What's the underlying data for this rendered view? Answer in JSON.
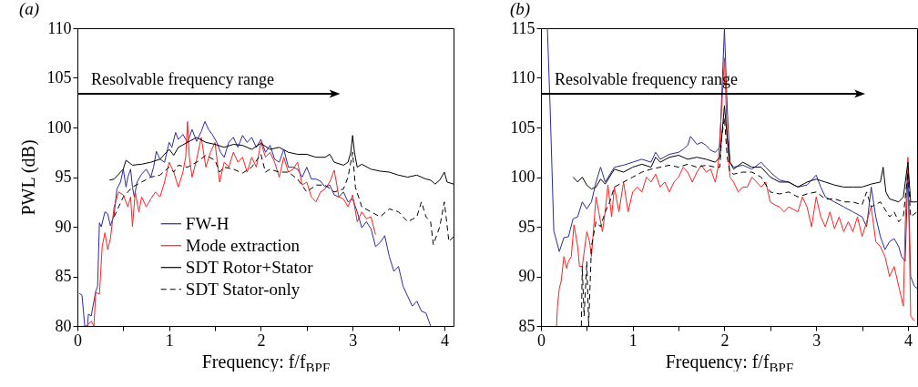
{
  "chart_data": [
    {
      "type": "line",
      "title": "(a)",
      "xlabel": "Frequency: f/f$_{BPF}$",
      "ylabel": "PWL (dB)",
      "xlim": [
        0,
        4.1
      ],
      "xticks": [
        0,
        {
          "value": 0.5,
          "label": null
        },
        1,
        {
          "value": 1.5,
          "label": null
        },
        2,
        {
          "value": 2.5,
          "label": null
        },
        3,
        {
          "value": 3.5,
          "label": null
        },
        4
      ],
      "ylim": [
        80,
        110
      ],
      "yticks": [
        80,
        85,
        90,
        95,
        100,
        105,
        110
      ],
      "legend": "bottom",
      "marker": "none",
      "annotations": [
        {
          "text": "Resolvable frequency range",
          "x": 2.82,
          "y": 103.4
        }
      ],
      "series": [
        {
          "name": "FW-H",
          "color": "#2b2b9e",
          "line_style": "solid",
          "x": [
            0.02,
            0.05,
            0.08,
            0.11,
            0.12,
            0.15,
            0.2,
            0.22,
            0.24,
            0.26,
            0.3,
            0.33,
            0.36,
            0.4,
            0.43,
            0.47,
            0.5,
            0.53,
            0.55,
            0.58,
            0.6,
            0.62,
            0.65,
            0.7,
            0.75,
            0.8,
            0.83,
            0.86,
            0.9,
            0.95,
            1.0,
            1.03,
            1.07,
            1.1,
            1.15,
            1.2,
            1.25,
            1.3,
            1.35,
            1.39,
            1.43,
            1.47,
            1.52,
            1.56,
            1.6,
            1.65,
            1.7,
            1.75,
            1.8,
            1.85,
            1.9,
            1.95,
            2.0,
            2.05,
            2.1,
            2.15,
            2.2,
            2.25,
            2.3,
            2.35,
            2.4,
            2.45,
            2.5,
            2.55,
            2.6,
            2.65,
            2.7,
            2.75,
            2.8,
            2.85,
            2.9,
            2.95,
            3.0,
            3.05,
            3.1,
            3.15,
            3.2,
            3.25,
            3.3,
            3.35,
            3.4,
            3.45,
            3.5,
            3.55,
            3.6,
            3.65,
            3.7,
            3.75,
            3.8,
            3.85
          ],
          "values": [
            83.3,
            83.1,
            80.0,
            80.0,
            81.2,
            81.0,
            83.5,
            84.0,
            90.4,
            90.0,
            91.5,
            91.3,
            90.1,
            91.2,
            93.8,
            94.5,
            95.8,
            94.0,
            95.0,
            95.8,
            94.0,
            93.0,
            94.5,
            95.3,
            95.8,
            95.0,
            96.0,
            97.6,
            96.8,
            96.5,
            98.5,
            98.0,
            99.5,
            98.8,
            99.3,
            98.5,
            99.8,
            98.6,
            99.6,
            100.6,
            99.8,
            99.3,
            98.5,
            97.5,
            97.0,
            98.5,
            99.0,
            98.0,
            99.2,
            98.5,
            99.0,
            98.0,
            98.8,
            97.5,
            98.2,
            96.8,
            96.5,
            97.8,
            96.0,
            96.0,
            95.8,
            95.0,
            96.0,
            94.8,
            94.8,
            94.6,
            94.0,
            94.2,
            93.2,
            93.0,
            93.5,
            92.5,
            92.8,
            91.5,
            89.9,
            90.5,
            89.8,
            88.0,
            88.4,
            89.1,
            87.0,
            85.5,
            86.0,
            84.0,
            83.0,
            82.0,
            82.5,
            81.5,
            81.3,
            80.0
          ]
        },
        {
          "name": "Mode extraction",
          "color": "#ff2020",
          "line_style": "solid",
          "x": [
            0.1,
            0.15,
            0.18,
            0.2,
            0.24,
            0.27,
            0.3,
            0.33,
            0.36,
            0.4,
            0.45,
            0.5,
            0.55,
            0.58,
            0.6,
            0.63,
            0.67,
            0.7,
            0.75,
            0.8,
            0.85,
            0.9,
            0.95,
            1.0,
            1.05,
            1.1,
            1.15,
            1.18,
            1.2,
            1.22,
            1.25,
            1.3,
            1.35,
            1.4,
            1.45,
            1.5,
            1.55,
            1.6,
            1.65,
            1.7,
            1.75,
            1.8,
            1.85,
            1.9,
            1.95,
            2.0,
            2.05,
            2.1,
            2.15,
            2.2,
            2.25,
            2.3,
            2.35,
            2.4,
            2.45,
            2.5,
            2.55,
            2.6,
            2.65,
            2.7,
            2.75,
            2.8,
            2.85,
            2.9,
            2.95,
            3.0,
            3.05,
            3.1,
            3.15,
            3.2,
            3.25
          ],
          "values": [
            80.0,
            80.5,
            80.0,
            83.4,
            83.2,
            88.0,
            89.4,
            87.7,
            88.8,
            92.0,
            93.5,
            93.2,
            92.0,
            93.0,
            90.0,
            93.5,
            91.5,
            93.0,
            92.0,
            92.8,
            93.5,
            93.0,
            94.5,
            96.5,
            95.5,
            94.0,
            95.5,
            97.0,
            100.6,
            97.0,
            95.0,
            96.8,
            99.0,
            96.0,
            97.5,
            98.5,
            94.5,
            96.5,
            96.0,
            97.5,
            96.5,
            97.0,
            95.5,
            97.0,
            96.0,
            98.5,
            97.0,
            97.5,
            96.5,
            95.0,
            97.0,
            95.5,
            95.8,
            96.5,
            94.2,
            94.5,
            93.0,
            92.5,
            93.5,
            93.8,
            94.5,
            95.7,
            93.0,
            92.8,
            92.0,
            93.2,
            90.5,
            91.5,
            90.8,
            91.0,
            89.2
          ]
        },
        {
          "name": "SDT Rotor+Stator",
          "color": "#000000",
          "line_style": "solid",
          "x": [
            0.35,
            0.4,
            0.5,
            0.53,
            0.6,
            0.7,
            0.8,
            0.9,
            1.0,
            1.05,
            1.1,
            1.2,
            1.3,
            1.4,
            1.5,
            1.6,
            1.7,
            1.8,
            1.9,
            2.0,
            2.1,
            2.2,
            2.3,
            2.4,
            2.5,
            2.6,
            2.7,
            2.75,
            2.8,
            2.9,
            2.95,
            2.98,
            3.0,
            3.02,
            3.05,
            3.1,
            3.2,
            3.3,
            3.4,
            3.5,
            3.6,
            3.7,
            3.8,
            3.85,
            3.9,
            3.95,
            4.0,
            4.03,
            4.1
          ],
          "values": [
            94.7,
            94.8,
            95.8,
            96.7,
            96.2,
            96.3,
            96.5,
            96.8,
            97.8,
            97.2,
            98.0,
            98.5,
            99.0,
            98.5,
            98.3,
            98.0,
            98.3,
            98.2,
            97.8,
            98.4,
            97.8,
            98.0,
            97.5,
            97.3,
            97.3,
            97.0,
            97.0,
            97.3,
            96.5,
            96.2,
            96.5,
            97.5,
            99.2,
            97.5,
            96.0,
            96.3,
            95.8,
            95.6,
            95.5,
            95.2,
            95.0,
            95.2,
            94.8,
            94.7,
            94.3,
            94.7,
            95.5,
            94.5,
            94.3
          ]
        },
        {
          "name": "SDT Stator-only",
          "color": "#000000",
          "line_style": "dashed",
          "x": [
            0.4,
            0.5,
            0.6,
            0.7,
            0.8,
            0.9,
            1.0,
            1.05,
            1.1,
            1.2,
            1.3,
            1.4,
            1.5,
            1.55,
            1.6,
            1.7,
            1.8,
            1.9,
            2.0,
            2.05,
            2.1,
            2.2,
            2.3,
            2.4,
            2.5,
            2.6,
            2.7,
            2.8,
            2.9,
            2.95,
            3.0,
            3.03,
            3.1,
            3.2,
            3.3,
            3.4,
            3.5,
            3.6,
            3.7,
            3.75,
            3.8,
            3.85,
            3.88,
            3.95,
            4.0,
            4.05,
            4.1
          ],
          "values": [
            91.0,
            93.0,
            94.0,
            94.5,
            95.0,
            95.2,
            96.0,
            95.5,
            96.2,
            96.0,
            96.5,
            97.2,
            96.7,
            95.5,
            96.0,
            95.8,
            95.4,
            96.0,
            97.3,
            95.5,
            95.8,
            95.5,
            95.5,
            94.8,
            93.5,
            94.2,
            94.2,
            93.5,
            93.8,
            95.0,
            97.5,
            94.0,
            92.0,
            91.5,
            91.0,
            91.8,
            91.5,
            90.5,
            91.0,
            92.5,
            91.0,
            90.5,
            88.2,
            90.0,
            92.5,
            88.5,
            89.0
          ]
        }
      ]
    },
    {
      "type": "line",
      "title": "(b)",
      "xlabel": "Frequency: f/f$_{BPF}$",
      "xlim": [
        0,
        4.1
      ],
      "xticks": [
        0,
        {
          "value": 0.5,
          "label": null
        },
        1,
        {
          "value": 1.5,
          "label": null
        },
        2,
        {
          "value": 2.5,
          "label": null
        },
        3,
        {
          "value": 3.5,
          "label": null
        },
        4
      ],
      "ylim": [
        85,
        115
      ],
      "yticks": [
        85,
        90,
        95,
        100,
        105,
        110,
        115
      ],
      "marker": "none",
      "annotations": [
        {
          "text": "Resolvable frequency range",
          "x": 3.49,
          "y": 108.4
        }
      ],
      "series": [
        {
          "color": "#2b2b9e",
          "line_style": "solid",
          "x": [
            0.07,
            0.1,
            0.14,
            0.2,
            0.25,
            0.3,
            0.35,
            0.4,
            0.45,
            0.5,
            0.55,
            0.6,
            0.65,
            0.7,
            0.8,
            0.9,
            1.0,
            1.1,
            1.2,
            1.25,
            1.3,
            1.4,
            1.5,
            1.55,
            1.6,
            1.63,
            1.7,
            1.75,
            1.8,
            1.85,
            1.9,
            1.95,
            1.97,
            2.0,
            2.03,
            2.06,
            2.1,
            2.2,
            2.3,
            2.4,
            2.45,
            2.5,
            2.6,
            2.7,
            2.8,
            2.9,
            3.0,
            3.05,
            3.1,
            3.2,
            3.3,
            3.4,
            3.5,
            3.55,
            3.6,
            3.65,
            3.7,
            3.75,
            3.8,
            3.85,
            3.9,
            3.93,
            3.97,
            4.0,
            4.03,
            4.07,
            4.1
          ],
          "values": [
            115.0,
            107.0,
            94.6,
            92.5,
            93.9,
            94.0,
            95.8,
            96.0,
            97.5,
            96.8,
            97.5,
            99.5,
            101.0,
            99.5,
            101.0,
            101.2,
            101.5,
            101.8,
            101.5,
            102.5,
            101.8,
            102.3,
            102.5,
            102.8,
            103.2,
            104.1,
            103.3,
            103.5,
            103.2,
            102.7,
            102.5,
            103.0,
            108.0,
            115.0,
            107.0,
            101.5,
            101.0,
            101.2,
            100.8,
            101.5,
            101.0,
            100.5,
            99.7,
            99.5,
            99.0,
            99.2,
            100.2,
            99.0,
            98.0,
            97.5,
            97.0,
            96.5,
            96.0,
            95.0,
            99.0,
            96.0,
            94.0,
            92.7,
            93.5,
            93.8,
            93.0,
            92.0,
            91.5,
            100.5,
            90.0,
            89.0,
            88.8
          ]
        },
        {
          "color": "#ff2020",
          "line_style": "solid",
          "x": [
            0.17,
            0.18,
            0.2,
            0.22,
            0.25,
            0.28,
            0.3,
            0.33,
            0.36,
            0.4,
            0.42,
            0.45,
            0.5,
            0.53,
            0.55,
            0.6,
            0.63,
            0.67,
            0.7,
            0.73,
            0.77,
            0.8,
            0.85,
            0.9,
            0.95,
            1.0,
            1.05,
            1.1,
            1.15,
            1.2,
            1.25,
            1.3,
            1.35,
            1.4,
            1.45,
            1.5,
            1.55,
            1.6,
            1.65,
            1.7,
            1.75,
            1.8,
            1.85,
            1.9,
            1.93,
            1.97,
            2.0,
            2.03,
            2.06,
            2.1,
            2.15,
            2.2,
            2.25,
            2.3,
            2.35,
            2.4,
            2.45,
            2.5,
            2.55,
            2.6,
            2.65,
            2.7,
            2.8,
            2.85,
            2.9,
            2.95,
            3.0,
            3.05,
            3.1,
            3.15,
            3.2,
            3.25,
            3.3,
            3.35,
            3.4,
            3.45,
            3.5,
            3.55,
            3.6,
            3.65,
            3.7,
            3.75,
            3.8,
            3.85,
            3.9,
            3.95,
            3.97,
            4.0,
            4.03,
            4.07
          ],
          "values": [
            85.0,
            87.0,
            88.8,
            89.5,
            92.0,
            90.8,
            91.5,
            92.0,
            95.2,
            93.0,
            91.0,
            91.0,
            94.5,
            93.5,
            92.0,
            98.0,
            96.5,
            94.5,
            96.5,
            99.2,
            96.0,
            99.0,
            96.5,
            99.5,
            96.5,
            98.5,
            99.0,
            98.5,
            100.0,
            99.5,
            100.3,
            99.0,
            99.5,
            98.5,
            99.5,
            100.0,
            101.0,
            100.5,
            99.5,
            100.5,
            101.2,
            100.5,
            100.8,
            99.5,
            101.0,
            107.0,
            112.0,
            104.0,
            100.0,
            99.5,
            98.5,
            99.0,
            99.0,
            100.0,
            99.5,
            99.0,
            99.5,
            97.5,
            97.2,
            97.0,
            96.5,
            97.0,
            96.5,
            98.0,
            97.0,
            95.0,
            98.0,
            96.0,
            95.0,
            96.5,
            94.8,
            96.0,
            94.5,
            95.5,
            94.5,
            96.0,
            94.0,
            95.5,
            97.0,
            93.5,
            93.0,
            92.0,
            90.0,
            91.0,
            89.0,
            87.0,
            95.0,
            102.0,
            86.0,
            85.5
          ]
        },
        {
          "color": "#000000",
          "line_style": "solid",
          "x": [
            0.35,
            0.4,
            0.45,
            0.5,
            0.55,
            0.6,
            0.65,
            0.7,
            0.8,
            0.9,
            1.0,
            1.1,
            1.2,
            1.25,
            1.3,
            1.4,
            1.5,
            1.6,
            1.7,
            1.8,
            1.9,
            1.95,
            1.97,
            2.0,
            2.03,
            2.06,
            2.1,
            2.2,
            2.3,
            2.4,
            2.5,
            2.6,
            2.7,
            2.8,
            2.9,
            3.0,
            3.1,
            3.2,
            3.3,
            3.4,
            3.5,
            3.6,
            3.7,
            3.73,
            3.76,
            3.8,
            3.9,
            3.95,
            4.0,
            4.03,
            4.1
          ],
          "values": [
            100.0,
            99.5,
            100.0,
            99.2,
            98.8,
            99.0,
            99.8,
            99.3,
            100.8,
            100.5,
            101.0,
            101.3,
            101.0,
            102.0,
            101.5,
            102.0,
            102.2,
            101.8,
            102.0,
            101.8,
            101.5,
            102.0,
            104.0,
            107.2,
            104.0,
            101.5,
            100.8,
            101.5,
            101.0,
            101.0,
            100.0,
            99.5,
            99.5,
            99.0,
            99.5,
            99.8,
            99.5,
            99.2,
            99.0,
            99.0,
            99.0,
            99.3,
            99.5,
            101.0,
            98.5,
            97.8,
            97.5,
            98.0,
            101.5,
            97.5,
            97.5
          ]
        },
        {
          "color": "#000000",
          "line_style": "dashed",
          "x": [
            0.44,
            0.45,
            0.47,
            0.5,
            0.52,
            0.55,
            0.6,
            0.65,
            0.7,
            0.75,
            0.8,
            0.9,
            1.0,
            1.1,
            1.2,
            1.3,
            1.4,
            1.5,
            1.6,
            1.7,
            1.8,
            1.9,
            1.95,
            1.97,
            2.0,
            2.03,
            2.06,
            2.1,
            2.2,
            2.3,
            2.4,
            2.5,
            2.6,
            2.7,
            2.8,
            2.9,
            3.0,
            3.1,
            3.2,
            3.3,
            3.4,
            3.5,
            3.55,
            3.6,
            3.7,
            3.8,
            3.85,
            3.9,
            3.95,
            4.0,
            4.03,
            4.1
          ],
          "values": [
            85.0,
            91.0,
            86.0,
            91.5,
            85.0,
            93.0,
            95.5,
            95.0,
            96.5,
            97.5,
            99.0,
            99.5,
            100.0,
            100.5,
            100.8,
            101.0,
            101.2,
            101.0,
            101.3,
            101.0,
            101.2,
            101.0,
            101.0,
            104.0,
            106.0,
            102.0,
            100.5,
            100.3,
            100.5,
            100.5,
            100.0,
            98.5,
            98.3,
            98.5,
            98.0,
            98.3,
            98.5,
            97.8,
            97.8,
            97.5,
            97.5,
            97.2,
            98.5,
            97.0,
            97.5,
            96.0,
            96.5,
            95.5,
            96.0,
            100.5,
            96.0,
            96.5
          ]
        }
      ]
    }
  ]
}
